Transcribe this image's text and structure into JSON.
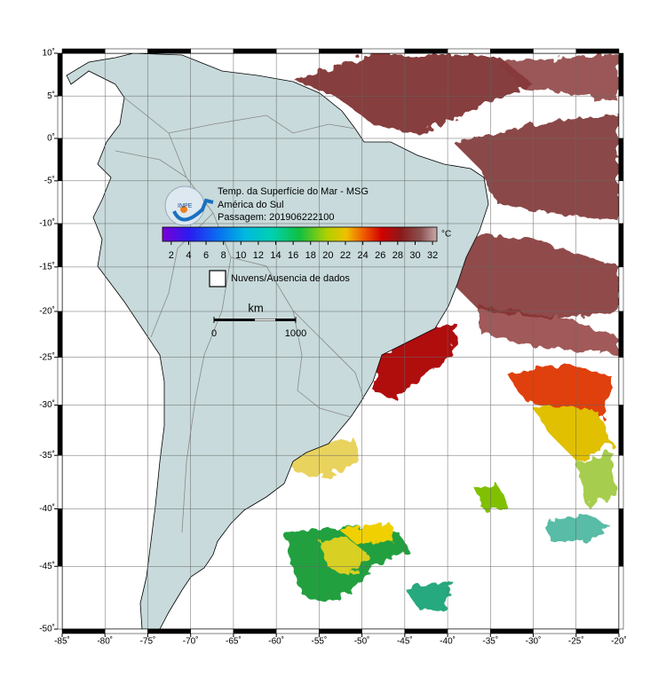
{
  "title": {
    "lines": [
      "Temp. da Superfície do Mar - MSG",
      "América do Sul",
      "Passagem: 201906222100"
    ]
  },
  "logo": "INPE",
  "colorbar": {
    "lim": [
      1,
      32.5
    ],
    "ticks": [
      2,
      4,
      6,
      8,
      10,
      12,
      14,
      16,
      18,
      20,
      22,
      24,
      26,
      28,
      30,
      32
    ],
    "unit": "°C"
  },
  "legend": {
    "no_data": "Nuvens/Ausencia de dados"
  },
  "scale_bar": {
    "unit": "km",
    "ticks": [
      0,
      1000
    ]
  },
  "map": {
    "xlim": [
      -85,
      -20
    ],
    "ylim": [
      -50,
      10
    ],
    "xticks": [
      {
        "value": -85,
        "label": "-85˚"
      },
      {
        "value": -80,
        "label": "-80˚"
      },
      {
        "value": -75,
        "label": "-75˚"
      },
      {
        "value": -70,
        "label": "-70˚"
      },
      {
        "value": -65,
        "label": "-65˚"
      },
      {
        "value": -60,
        "label": "-60˚"
      },
      {
        "value": -55,
        "label": "-55˚"
      },
      {
        "value": -50,
        "label": "-50˚"
      },
      {
        "value": -45,
        "label": "-45˚"
      },
      {
        "value": -40,
        "label": "-40˚"
      },
      {
        "value": -35,
        "label": "-35˚"
      },
      {
        "value": -30,
        "label": "-30˚"
      },
      {
        "value": -25,
        "label": "-25˚"
      },
      {
        "value": -20,
        "label": "-20˚"
      }
    ],
    "yticks": [
      {
        "value": 10,
        "label": "10˚"
      },
      {
        "value": 5,
        "label": "5˚"
      },
      {
        "value": 0,
        "label": "0˚"
      },
      {
        "value": -5,
        "label": "-5˚"
      },
      {
        "value": -10,
        "label": "-10˚"
      },
      {
        "value": -15,
        "label": "-15˚"
      },
      {
        "value": -20,
        "label": "-20˚"
      },
      {
        "value": -25,
        "label": "-25˚"
      },
      {
        "value": -30,
        "label": "-30˚"
      },
      {
        "value": -35,
        "label": "-35˚"
      },
      {
        "value": -40,
        "label": "-40˚"
      },
      {
        "value": -45,
        "label": "-45˚"
      },
      {
        "value": -50,
        "label": "-50˚"
      }
    ]
  }
}
